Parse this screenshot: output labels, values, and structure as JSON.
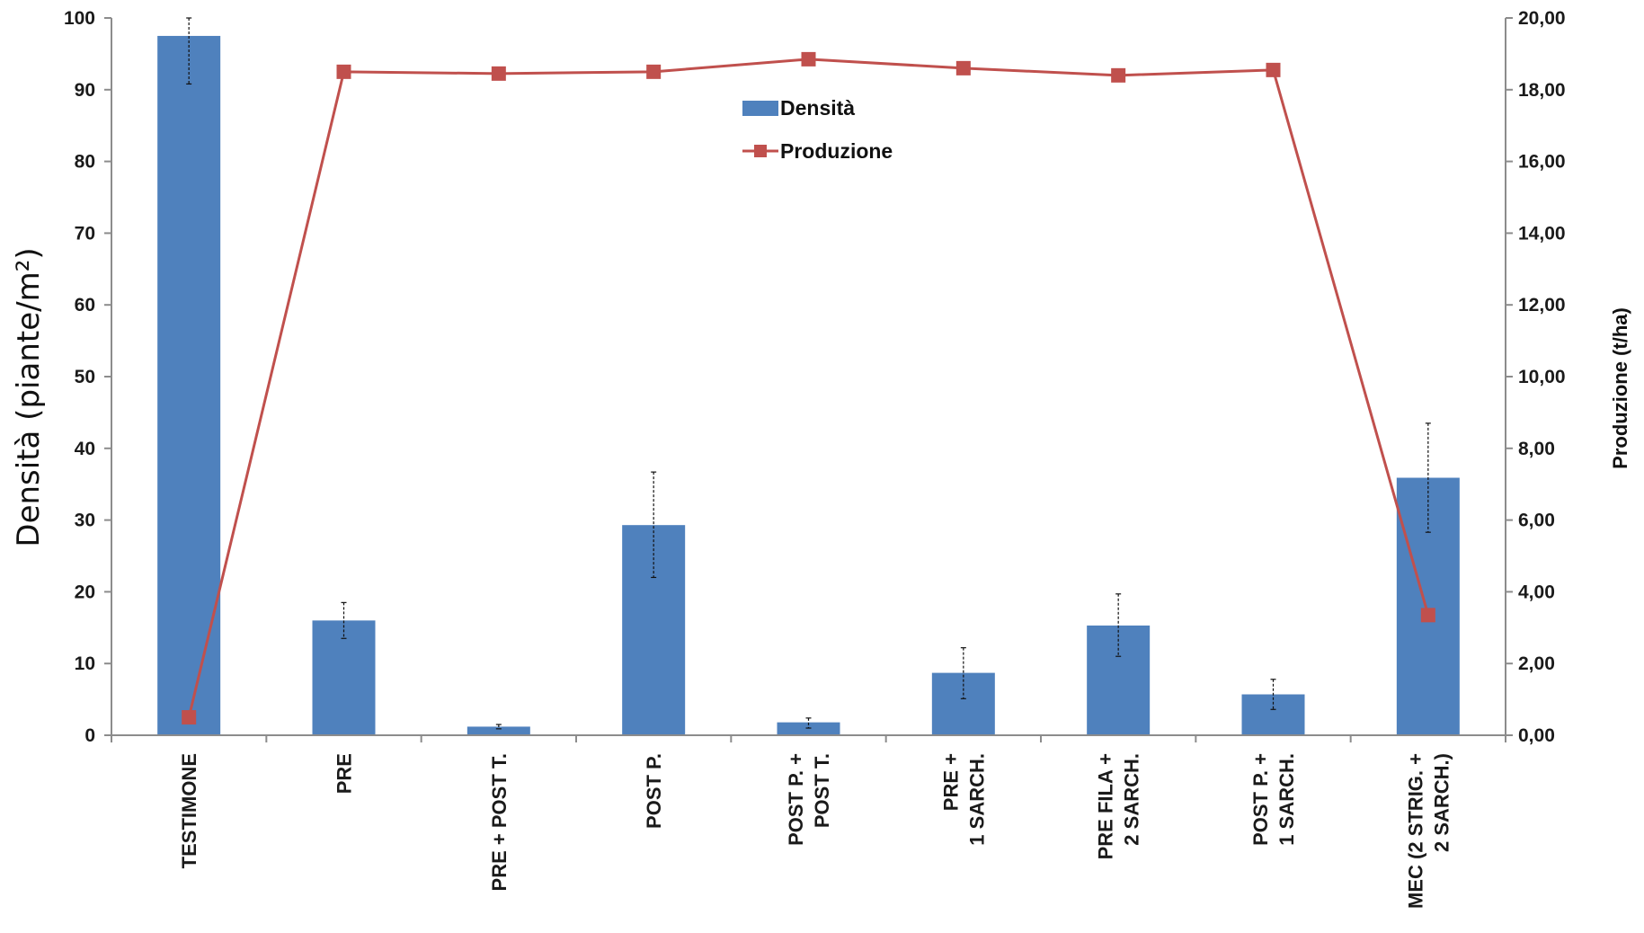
{
  "chart_data": {
    "type": "bar+line",
    "categories": [
      [
        "TESTIMONE"
      ],
      [
        "PRE"
      ],
      [
        "PRE + POST T."
      ],
      [
        "POST  P."
      ],
      [
        "POST  P. +",
        "POST  T."
      ],
      [
        "PRE  +",
        "1 SARCH."
      ],
      [
        "PRE  FILA +",
        "2 SARCH."
      ],
      [
        "POST  P. +",
        "1 SARCH."
      ],
      [
        "MEC (2 STRIG. +",
        "2 SARCH.)"
      ]
    ],
    "series": [
      {
        "name": "Densità",
        "kind": "bar",
        "axis": "left",
        "color": "#4F81BD",
        "values": [
          97.5,
          16.0,
          1.2,
          29.3,
          1.8,
          8.7,
          15.3,
          5.7,
          35.9
        ],
        "error_low": [
          90.8,
          13.5,
          0.9,
          22.0,
          1.0,
          5.1,
          11.0,
          3.6,
          28.3
        ],
        "error_high": [
          100.0,
          18.5,
          1.5,
          36.7,
          2.4,
          12.2,
          19.7,
          7.8,
          43.5
        ]
      },
      {
        "name": "Produzione",
        "kind": "line",
        "axis": "right",
        "color": "#C0504D",
        "values": [
          0.5,
          18.5,
          18.45,
          18.5,
          18.85,
          18.6,
          18.4,
          18.55,
          3.35
        ]
      }
    ],
    "y_left": {
      "label": "Densità (piante/m²)",
      "min": 0,
      "max": 100,
      "ticks": [
        "0",
        "10",
        "20",
        "30",
        "40",
        "50",
        "60",
        "70",
        "80",
        "90",
        "100"
      ]
    },
    "y_right": {
      "label": "Produzione (t/ha)",
      "min": 0,
      "max": 20,
      "ticks": [
        "0,00",
        "2,00",
        "4,00",
        "6,00",
        "8,00",
        "10,00",
        "12,00",
        "14,00",
        "16,00",
        "18,00",
        "20,00"
      ]
    },
    "legend": {
      "placement": "top-center",
      "items": [
        "Densità",
        "Produzione"
      ]
    },
    "grid": false
  }
}
